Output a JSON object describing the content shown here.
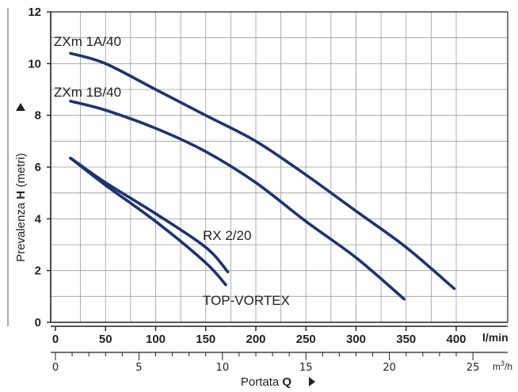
{
  "chart_data": {
    "type": "line",
    "ylabel": {
      "prefix": "Prevalenza ",
      "bold": "H",
      "suffix": " (metri)"
    },
    "xlabel": {
      "prefix": "Portata ",
      "bold": "Q"
    },
    "x_unit": "l/min",
    "x2_unit_base": "m",
    "x2_unit_sup": "3",
    "x2_unit_suffix": "/h",
    "ylim": [
      0,
      12
    ],
    "xlim": [
      0,
      420
    ],
    "yticks": [
      "0",
      "2",
      "4",
      "6",
      "8",
      "10",
      "12"
    ],
    "xticks": [
      "0",
      "50",
      "100",
      "150",
      "200",
      "250",
      "300",
      "350",
      "400"
    ],
    "x2ticks": [
      "0",
      "5",
      "10",
      "15",
      "20",
      "25"
    ],
    "grid": true,
    "series": [
      {
        "name": "ZXm 1A/40",
        "color": "#1f3370",
        "x": [
          15,
          50,
          100,
          150,
          200,
          250,
          300,
          350,
          398
        ],
        "y": [
          10.4,
          10.0,
          9.0,
          8.0,
          7.0,
          5.7,
          4.3,
          2.9,
          1.3
        ]
      },
      {
        "name": "ZXm 1B/40",
        "color": "#1f3370",
        "x": [
          15,
          50,
          100,
          150,
          200,
          250,
          300,
          348
        ],
        "y": [
          8.55,
          8.2,
          7.5,
          6.6,
          5.4,
          3.9,
          2.5,
          0.9
        ]
      },
      {
        "name": "RX 2/20",
        "color": "#1f3370",
        "x": [
          15,
          50,
          100,
          150,
          172
        ],
        "y": [
          6.35,
          5.4,
          4.2,
          2.9,
          1.95
        ]
      },
      {
        "name": "TOP-VORTEX",
        "color": "#1f3370",
        "x": [
          15,
          50,
          100,
          150,
          170
        ],
        "y": [
          6.35,
          5.3,
          3.9,
          2.3,
          1.45
        ]
      }
    ]
  }
}
